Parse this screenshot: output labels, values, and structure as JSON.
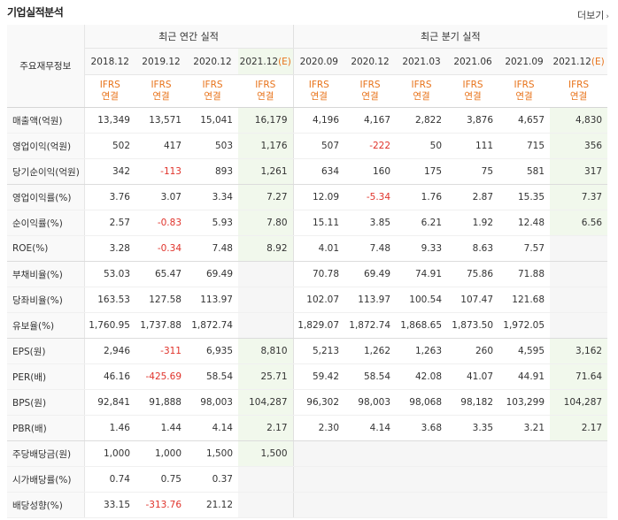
{
  "title": "기업실적분석",
  "more_label": "더보기",
  "header": {
    "row_label": "주요재무정보",
    "annual_group": "최근 연간 실적",
    "quarter_group": "최근 분기 실적",
    "annual_periods": [
      "2018.12",
      "2019.12",
      "2020.12",
      "2021.12"
    ],
    "annual_est": [
      "",
      "",
      "",
      "(E)"
    ],
    "quarter_periods": [
      "2020.09",
      "2020.12",
      "2021.03",
      "2021.06",
      "2021.09",
      "2021.12"
    ],
    "quarter_est": [
      "",
      "",
      "",
      "",
      "",
      "(E)"
    ],
    "ifrs_line1": "IFRS",
    "ifrs_line2": "연결"
  },
  "rows": [
    {
      "label": "매출액(억원)",
      "values": [
        "13,349",
        "13,571",
        "15,041",
        "16,179",
        "4,196",
        "4,167",
        "2,822",
        "3,876",
        "4,657",
        "4,830"
      ]
    },
    {
      "label": "영업이익(억원)",
      "values": [
        "502",
        "417",
        "503",
        "1,176",
        "507",
        "-222",
        "50",
        "111",
        "715",
        "356"
      ]
    },
    {
      "label": "당기순이익(억원)",
      "values": [
        "342",
        "-113",
        "893",
        "1,261",
        "634",
        "160",
        "175",
        "75",
        "581",
        "317"
      ]
    },
    {
      "label": "영업이익률(%)",
      "values": [
        "3.76",
        "3.07",
        "3.34",
        "7.27",
        "12.09",
        "-5.34",
        "1.76",
        "2.87",
        "15.35",
        "7.37"
      ]
    },
    {
      "label": "순이익률(%)",
      "values": [
        "2.57",
        "-0.83",
        "5.93",
        "7.80",
        "15.11",
        "3.85",
        "6.21",
        "1.92",
        "12.48",
        "6.56"
      ]
    },
    {
      "label": "ROE(%)",
      "values": [
        "3.28",
        "-0.34",
        "7.48",
        "8.92",
        "4.01",
        "7.48",
        "9.33",
        "8.63",
        "7.57",
        ""
      ]
    },
    {
      "label": "부채비율(%)",
      "values": [
        "53.03",
        "65.47",
        "69.49",
        "",
        "70.78",
        "69.49",
        "74.91",
        "75.86",
        "71.88",
        ""
      ]
    },
    {
      "label": "당좌비율(%)",
      "values": [
        "163.53",
        "127.58",
        "113.97",
        "",
        "102.07",
        "113.97",
        "100.54",
        "107.47",
        "121.68",
        ""
      ]
    },
    {
      "label": "유보율(%)",
      "values": [
        "1,760.95",
        "1,737.88",
        "1,872.74",
        "",
        "1,829.07",
        "1,872.74",
        "1,868.65",
        "1,873.50",
        "1,972.05",
        ""
      ]
    },
    {
      "label": "EPS(원)",
      "values": [
        "2,946",
        "-311",
        "6,935",
        "8,810",
        "5,213",
        "1,262",
        "1,263",
        "260",
        "4,595",
        "3,162"
      ]
    },
    {
      "label": "PER(배)",
      "values": [
        "46.16",
        "-425.69",
        "58.54",
        "25.71",
        "59.42",
        "58.54",
        "42.08",
        "41.07",
        "44.91",
        "71.64"
      ]
    },
    {
      "label": "BPS(원)",
      "values": [
        "92,841",
        "91,888",
        "98,003",
        "104,287",
        "96,302",
        "98,003",
        "98,068",
        "98,182",
        "103,299",
        "104,287"
      ]
    },
    {
      "label": "PBR(배)",
      "values": [
        "1.46",
        "1.44",
        "4.14",
        "2.17",
        "2.30",
        "4.14",
        "3.68",
        "3.35",
        "3.21",
        "2.17"
      ]
    },
    {
      "label": "주당배당금(원)",
      "values": [
        "1,000",
        "1,000",
        "1,500",
        "1,500",
        "",
        "",
        "",
        "",
        "",
        ""
      ]
    },
    {
      "label": "시가배당률(%)",
      "values": [
        "0.74",
        "0.75",
        "0.37",
        "",
        "",
        "",
        "",
        "",
        "",
        ""
      ]
    },
    {
      "label": "배당성향(%)",
      "values": [
        "33.15",
        "-313.76",
        "21.12",
        "",
        "",
        "",
        "",
        "",
        "",
        ""
      ]
    }
  ],
  "colors": {
    "ifrs": "#e8731a",
    "negative": "#e0332b",
    "estimate_bg": "#f1f8ec",
    "header_bg": "#f9f9f9"
  }
}
